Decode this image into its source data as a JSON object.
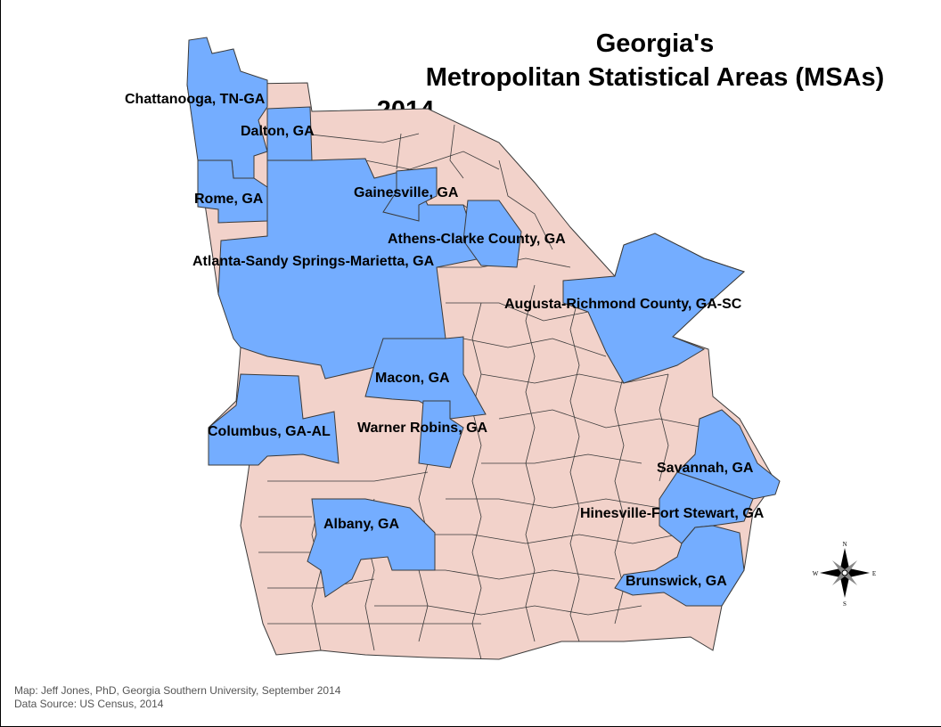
{
  "title": {
    "line1": "Georgia's",
    "line2": "Metropolitan Statistical Areas (MSAs)",
    "line3": "2014"
  },
  "colors": {
    "msa_fill": "#74adff",
    "county_fill": "#f2d2ca",
    "border": "#3a3a3a"
  },
  "msa_labels": [
    "Chattanooga, TN-GA",
    "Dalton, GA",
    "Rome, GA",
    "Gainesville, GA",
    "Athens-Clarke County, GA",
    "Atlanta-Sandy Springs-Marietta, GA",
    "Augusta-Richmond County, GA-SC",
    "Macon, GA",
    "Columbus, GA-AL",
    "Warner Robins, GA",
    "Savannah, GA",
    "Hinesville-Fort Stewart, GA",
    "Albany, GA",
    "Brunswick, GA"
  ],
  "compass": {
    "n": "N",
    "s": "S",
    "e": "E",
    "w": "W"
  },
  "credits": {
    "map": "Map:  Jeff Jones, PhD, Georgia Southern University, September 2014",
    "source": "Data Source:  US Census, 2014"
  }
}
